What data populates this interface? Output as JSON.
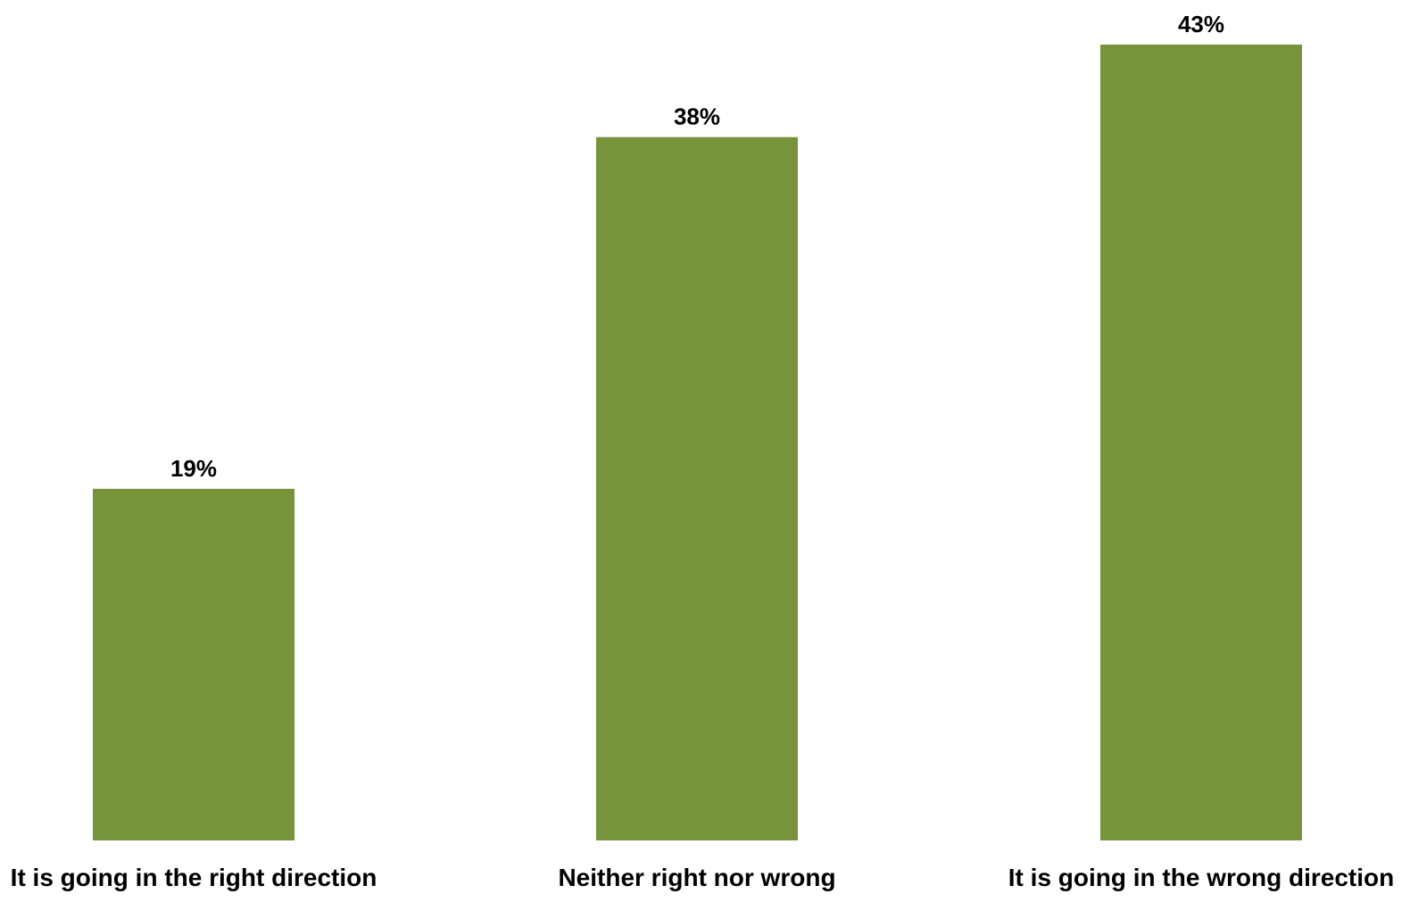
{
  "chart_data": {
    "type": "bar",
    "title": "",
    "xlabel": "",
    "ylabel": "",
    "categories": [
      "It is going in the right direction",
      "Neither right nor wrong",
      "It is going in the wrong direction"
    ],
    "values": [
      19,
      38,
      43
    ],
    "value_labels": [
      "19%",
      "38%",
      "43%"
    ],
    "unit": "%",
    "ylim": [
      0,
      43
    ],
    "grid": false,
    "legend": "none",
    "bar_color": "#77933C",
    "background": "#FFFFFF"
  }
}
